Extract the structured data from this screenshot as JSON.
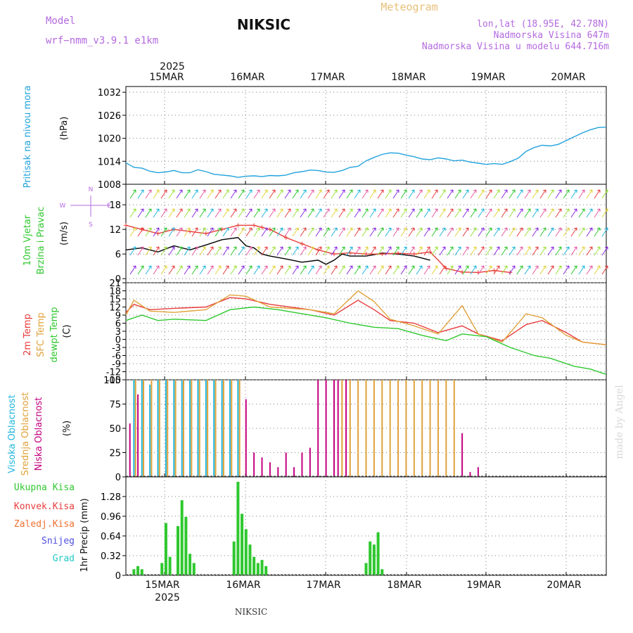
{
  "header": {
    "model_label": "Model",
    "model_name": "wrf−nmm_v3.9.1 e1km",
    "station": "NIKSIC",
    "meteogram": "Meteogram",
    "lonlat": "lon,lat (18.95E, 42.78N)",
    "elevation": "Nadmorska Visina 647m",
    "model_elevation": "Nadmorska Visina u modelu 644.716m",
    "year_top": "2025",
    "year_bottom": "2025",
    "footer_station": "NIKSIC",
    "credit": "made by Angel"
  },
  "colors": {
    "pressure": "#22a3dc",
    "wind_speed": "#000000",
    "wind_gust": "#e8403a",
    "temp_2m": "#e83c3c",
    "temp_sfc": "#e0a23a",
    "dewpoint": "#2ec82e",
    "cloud_high": "#22b6dc",
    "cloud_mid": "#e0a23a",
    "cloud_low": "#c4007f",
    "precip_total": "#2ec82e",
    "precip_conv": "#e83c3c",
    "grid": "#7f7f7f"
  },
  "chart_data": [
    {
      "type": "line",
      "panel": "pressure",
      "ylabel_parts": [
        "Pritisak na nivou mora",
        "(hPa)"
      ],
      "yticks": [
        "1008",
        "1014",
        "1020",
        "1026",
        "1032"
      ],
      "ylim": [
        1008,
        1033.5
      ],
      "xlim": [
        0,
        6
      ],
      "x_dates": [
        "15MAR",
        "16MAR",
        "17MAR",
        "18MAR",
        "19MAR",
        "20MAR"
      ],
      "series": [
        {
          "points": [
            [
              0.0,
              1013.6
            ],
            [
              0.05,
              1013
            ],
            [
              0.1,
              1012.4
            ],
            [
              0.2,
              1012.2
            ],
            [
              0.3,
              1011.4
            ],
            [
              0.4,
              1011
            ],
            [
              0.5,
              1011.2
            ],
            [
              0.6,
              1011.6
            ],
            [
              0.7,
              1011
            ],
            [
              0.8,
              1011
            ],
            [
              0.9,
              1011.8
            ],
            [
              1.0,
              1011.3
            ],
            [
              1.1,
              1010.6
            ],
            [
              1.2,
              1010.4
            ],
            [
              1.3,
              1010.2
            ],
            [
              1.4,
              1009.8
            ],
            [
              1.5,
              1010.1
            ],
            [
              1.6,
              1010.2
            ],
            [
              1.7,
              1010
            ],
            [
              1.8,
              1010.3
            ],
            [
              1.9,
              1010.2
            ],
            [
              2.0,
              1010.4
            ],
            [
              2.1,
              1011
            ],
            [
              2.2,
              1011.3
            ],
            [
              2.3,
              1011.7
            ],
            [
              2.4,
              1011.6
            ],
            [
              2.5,
              1011.2
            ],
            [
              2.6,
              1011.1
            ],
            [
              2.7,
              1011.6
            ],
            [
              2.8,
              1012.4
            ],
            [
              2.9,
              1012.7
            ],
            [
              3.0,
              1014.1
            ],
            [
              3.1,
              1015
            ],
            [
              3.2,
              1015.8
            ],
            [
              3.3,
              1016.2
            ],
            [
              3.4,
              1016.1
            ],
            [
              3.5,
              1015.6
            ],
            [
              3.6,
              1015.2
            ],
            [
              3.7,
              1014.6
            ],
            [
              3.8,
              1014.4
            ],
            [
              3.9,
              1014.9
            ],
            [
              4.0,
              1014.6
            ],
            [
              4.1,
              1014.1
            ],
            [
              4.2,
              1014.3
            ],
            [
              4.3,
              1013.8
            ],
            [
              4.4,
              1013.5
            ],
            [
              4.5,
              1013.2
            ],
            [
              4.6,
              1013.4
            ],
            [
              4.7,
              1013.2
            ],
            [
              4.8,
              1013.9
            ],
            [
              4.9,
              1014.8
            ],
            [
              5.0,
              1016.6
            ],
            [
              5.1,
              1017.6
            ],
            [
              5.2,
              1018.2
            ],
            [
              5.3,
              1018
            ],
            [
              5.4,
              1018.4
            ],
            [
              5.5,
              1019.4
            ],
            [
              5.6,
              1020.4
            ],
            [
              5.7,
              1021.4
            ],
            [
              5.8,
              1022.2
            ],
            [
              5.9,
              1022.8
            ],
            [
              6.0,
              1022.9
            ]
          ]
        }
      ]
    },
    {
      "type": "line",
      "panel": "wind",
      "ylabel_parts": [
        "10m Vjetar",
        "Brzina i Pravac",
        "(m/s)"
      ],
      "direction_legend": [
        "N",
        "W",
        "E",
        "S"
      ],
      "yticks": [
        "0",
        "6",
        "12",
        "18"
      ],
      "ylim": [
        -1,
        23
      ],
      "xlim": [
        0,
        6
      ],
      "series": [
        {
          "name": "speed",
          "points": [
            [
              0,
              7
            ],
            [
              0.2,
              7.5
            ],
            [
              0.4,
              6.5
            ],
            [
              0.6,
              8
            ],
            [
              0.8,
              7
            ],
            [
              1.0,
              8.2
            ],
            [
              1.2,
              9.5
            ],
            [
              1.4,
              10
            ],
            [
              1.5,
              8
            ],
            [
              1.6,
              7.5
            ],
            [
              1.7,
              6
            ],
            [
              1.8,
              5.5
            ],
            [
              2.0,
              4.8
            ],
            [
              2.2,
              4
            ],
            [
              2.4,
              4.5
            ],
            [
              2.5,
              3.5
            ],
            [
              2.6,
              4.5
            ],
            [
              2.7,
              6
            ],
            [
              2.8,
              5.5
            ],
            [
              3.0,
              5.5
            ],
            [
              3.2,
              6.2
            ],
            [
              3.4,
              6
            ],
            [
              3.6,
              5.5
            ],
            [
              3.8,
              4.5
            ]
          ]
        },
        {
          "name": "gust",
          "points": [
            [
              0,
              13
            ],
            [
              0.2,
              12
            ],
            [
              0.4,
              11
            ],
            [
              0.6,
              12
            ],
            [
              0.8,
              11.5
            ],
            [
              1.0,
              11
            ],
            [
              1.2,
              12
            ],
            [
              1.4,
              13
            ],
            [
              1.6,
              13
            ],
            [
              1.7,
              12.5
            ],
            [
              1.8,
              12
            ],
            [
              2.0,
              10
            ],
            [
              2.2,
              8.5
            ],
            [
              2.4,
              7
            ],
            [
              2.6,
              6
            ],
            [
              2.8,
              6.3
            ],
            [
              3.0,
              6
            ],
            [
              3.2,
              6
            ],
            [
              3.4,
              6.2
            ],
            [
              3.6,
              6
            ],
            [
              3.8,
              6.5
            ],
            [
              4.0,
              2.5
            ],
            [
              4.2,
              1.6
            ],
            [
              4.4,
              1.5
            ],
            [
              4.6,
              2
            ],
            [
              4.8,
              1.5
            ]
          ]
        }
      ]
    },
    {
      "type": "line",
      "panel": "temperature",
      "ylabel_parts": [
        "2m Temp",
        "SFC Temp",
        "dewpt Temp",
        "(C)"
      ],
      "yticks": [
        "-15",
        "-12",
        "-9",
        "-6",
        "-3",
        "0",
        "3",
        "6",
        "9",
        "12",
        "15",
        "18",
        "21"
      ],
      "ylim": [
        -15,
        21
      ],
      "xlim": [
        0,
        6
      ],
      "series": [
        {
          "name": "2m Temp",
          "points": [
            [
              0,
              10
            ],
            [
              0.1,
              13
            ],
            [
              0.3,
              11
            ],
            [
              0.6,
              11.5
            ],
            [
              1.0,
              12
            ],
            [
              1.3,
              15.5
            ],
            [
              1.5,
              15
            ],
            [
              1.8,
              13
            ],
            [
              2.3,
              11
            ],
            [
              2.6,
              9
            ],
            [
              2.9,
              14.5
            ],
            [
              3.1,
              11
            ],
            [
              3.3,
              7
            ],
            [
              3.6,
              6
            ],
            [
              3.9,
              2.5
            ],
            [
              4.2,
              5
            ],
            [
              4.4,
              2
            ],
            [
              4.7,
              -0.5
            ],
            [
              5.0,
              5.5
            ],
            [
              5.2,
              7
            ],
            [
              5.5,
              2.5
            ],
            [
              5.7,
              -1
            ],
            [
              6,
              -2
            ]
          ]
        },
        {
          "name": "SFC Temp",
          "points": [
            [
              0,
              9
            ],
            [
              0.1,
              14.5
            ],
            [
              0.3,
              10.5
            ],
            [
              0.6,
              10
            ],
            [
              1.0,
              11
            ],
            [
              1.3,
              16.5
            ],
            [
              1.5,
              16
            ],
            [
              1.8,
              12
            ],
            [
              2.3,
              11
            ],
            [
              2.6,
              9.5
            ],
            [
              2.9,
              18
            ],
            [
              3.1,
              14
            ],
            [
              3.3,
              7.5
            ],
            [
              3.6,
              5
            ],
            [
              3.9,
              2
            ],
            [
              4.2,
              12.5
            ],
            [
              4.4,
              2
            ],
            [
              4.7,
              -1
            ],
            [
              5.0,
              9.5
            ],
            [
              5.2,
              8
            ],
            [
              5.5,
              1.5
            ],
            [
              5.7,
              -1
            ],
            [
              6,
              -2
            ]
          ]
        },
        {
          "name": "dewpt Temp",
          "points": [
            [
              0,
              7
            ],
            [
              0.2,
              9
            ],
            [
              0.4,
              7
            ],
            [
              0.6,
              7.5
            ],
            [
              1.0,
              7
            ],
            [
              1.3,
              11
            ],
            [
              1.6,
              12
            ],
            [
              1.9,
              11
            ],
            [
              2.2,
              9.5
            ],
            [
              2.5,
              8
            ],
            [
              2.8,
              6
            ],
            [
              3.1,
              4.5
            ],
            [
              3.4,
              4
            ],
            [
              3.7,
              1.5
            ],
            [
              4.0,
              -0.5
            ],
            [
              4.2,
              2
            ],
            [
              4.5,
              1
            ],
            [
              4.8,
              -3
            ],
            [
              5.1,
              -6
            ],
            [
              5.3,
              -7
            ],
            [
              5.6,
              -10
            ],
            [
              5.8,
              -11
            ],
            [
              6,
              -13
            ]
          ]
        }
      ]
    },
    {
      "type": "bar",
      "panel": "clouds",
      "ylabel_parts": [
        "Visoka Oblacnost",
        "Srednja Oblacnost",
        "Niska Oblacnost",
        "(%)"
      ],
      "yticks": [
        "0",
        "25",
        "50",
        "75",
        "100"
      ],
      "ylim": [
        0,
        100
      ],
      "xlim": [
        0,
        6
      ],
      "series": [
        {
          "name": "Visoka Oblacnost",
          "x": [
            0.1,
            0.2,
            0.3,
            0.4,
            0.5,
            0.6,
            0.7,
            0.8,
            0.9,
            1.0,
            1.1,
            1.2,
            1.3,
            1.4
          ],
          "values": [
            100,
            100,
            95,
            100,
            100,
            100,
            100,
            100,
            100,
            100,
            100,
            100,
            100,
            100
          ]
        },
        {
          "name": "Srednja Oblacnost",
          "x": [
            0.12,
            0.22,
            0.32,
            0.42,
            0.52,
            0.62,
            0.72,
            0.82,
            0.92,
            1.02,
            1.12,
            1.22,
            1.32,
            1.42,
            2.6,
            2.7,
            2.8,
            2.9,
            3.0,
            3.1,
            3.2,
            3.3,
            3.4,
            3.5,
            3.6,
            3.7,
            3.8,
            3.9,
            4.0,
            4.1
          ],
          "values": [
            100,
            100,
            100,
            100,
            100,
            100,
            100,
            100,
            100,
            100,
            100,
            100,
            100,
            100,
            100,
            100,
            100,
            100,
            100,
            100,
            100,
            100,
            100,
            100,
            100,
            100,
            100,
            100,
            100,
            100
          ]
        },
        {
          "name": "Niska Oblacnost",
          "x": [
            0.05,
            0.15,
            1.5,
            1.6,
            1.7,
            1.8,
            1.9,
            2.0,
            2.1,
            2.2,
            2.3,
            2.4,
            2.5,
            2.6,
            2.65,
            2.75,
            4.2,
            4.3,
            4.4
          ],
          "values": [
            55,
            85,
            80,
            25,
            20,
            15,
            10,
            25,
            10,
            25,
            30,
            100,
            100,
            100,
            100,
            100,
            45,
            5,
            10
          ]
        }
      ]
    },
    {
      "type": "bar",
      "panel": "precipitation",
      "ylabel_parts": [
        "1hr Precip (mm)"
      ],
      "legend": [
        "Ukupna Kisa",
        "Konvek.Kisa",
        "Zaledj.Kisa",
        "Snijeg",
        "Grad"
      ],
      "yticks": [
        "0",
        "0.32",
        "0.64",
        "0.96",
        "1.28"
      ],
      "ylim": [
        0,
        1.6
      ],
      "xlim": [
        0,
        6
      ],
      "series": [
        {
          "name": "Ukupna Kisa",
          "x": [
            0.1,
            0.15,
            0.2,
            0.45,
            0.5,
            0.55,
            0.65,
            0.7,
            0.75,
            0.8,
            0.85,
            1.35,
            1.4,
            1.45,
            1.5,
            1.55,
            1.6,
            1.65,
            1.7,
            1.75,
            3.0,
            3.05,
            3.1,
            3.15,
            3.2
          ],
          "values": [
            0.1,
            0.15,
            0.1,
            0.2,
            0.85,
            0.3,
            0.8,
            1.22,
            0.95,
            0.35,
            0.2,
            0.55,
            1.52,
            1.0,
            0.75,
            0.5,
            0.3,
            0.2,
            0.25,
            0.15,
            0.2,
            0.55,
            0.5,
            0.7,
            0.1
          ]
        }
      ]
    }
  ]
}
